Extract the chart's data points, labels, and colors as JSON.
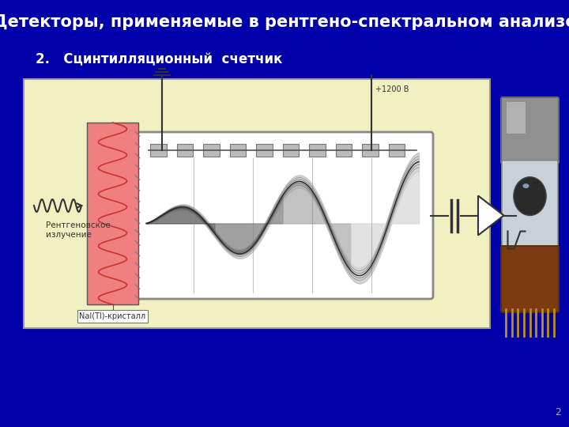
{
  "background_color": "#0000AA",
  "title": "Детекторы, применяемые в рентгено-спектральном анализе",
  "title_color": "#FFFFFF",
  "title_fontsize": 15,
  "subtitle": "2.   Сцинтилляционный  счетчик",
  "subtitle_color": "#FFFFFF",
  "subtitle_fontsize": 12,
  "diagram_bg": "#F0F0C0",
  "page_number": "2",
  "voltage_label": "+1200 В",
  "crystal_label": "NaI(Tl)-кристалл",
  "xray_label1": "Рентгеновское",
  "xray_label2": "излучение"
}
